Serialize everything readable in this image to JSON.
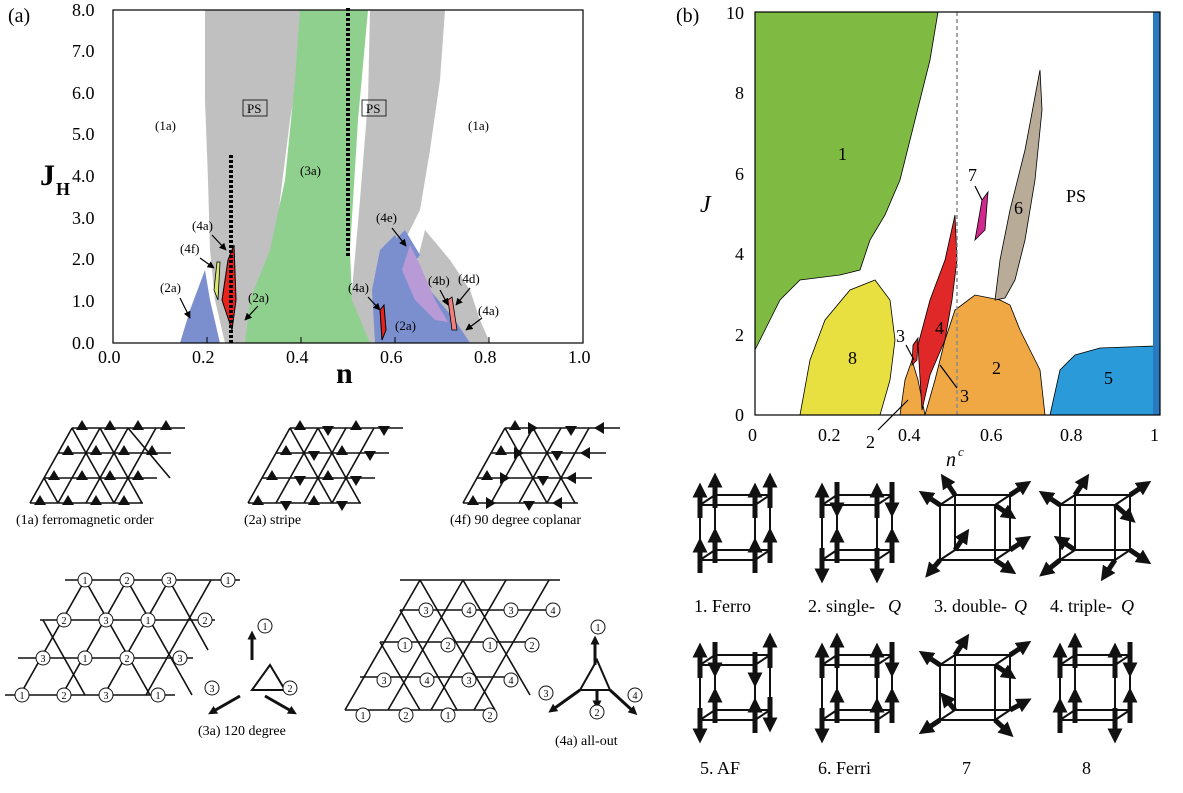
{
  "panel_a": {
    "tag": "(a)",
    "ylabel": "J",
    "ylabel_sub": "H",
    "xlabel": "n",
    "x_ticks": [
      "0.0",
      "0.2",
      "0.4",
      "0.6",
      "0.8",
      "1.0"
    ],
    "y_ticks": [
      "0.0",
      "1.0",
      "2.0",
      "3.0",
      "4.0",
      "5.0",
      "6.0",
      "7.0",
      "8.0"
    ],
    "region_labels": {
      "l1a_left": "(1a)",
      "l1a_right": "(1a)",
      "ps_left": "PS",
      "ps_right": "PS",
      "l3a": "(3a)",
      "l4a_top": "(4a)",
      "l4f": "(4f)",
      "l2a_left": "(2a)",
      "l2a_mid": "(2a)",
      "l4e": "(4e)",
      "l4a_mid": "(4a)",
      "l2a_right": "(2a)",
      "l4b": "(4b)",
      "l4d": "(4d)",
      "l4a_right": "(4a)"
    },
    "colors": {
      "ps": "#c0c0c0",
      "green": "#8fd08f",
      "blue": "#7b8fcf",
      "red": "#e8231f",
      "purple": "#b89ad6",
      "yellow": "#d8e870",
      "pink": "#f08080"
    }
  },
  "panel_b": {
    "tag": "(b)",
    "ylabel": "J",
    "xlabel": "n",
    "xlabel_sup": "c",
    "x_ticks": [
      "0",
      "0.2",
      "0.4",
      "0.6",
      "0.8",
      "1"
    ],
    "y_ticks": [
      "0",
      "2",
      "4",
      "6",
      "8",
      "10"
    ],
    "region_labels": {
      "r1": "1",
      "r2": "2",
      "r2b": "2",
      "r3": "3",
      "r3b": "3",
      "r4": "4",
      "r5": "5",
      "r6": "6",
      "r7": "7",
      "r8": "8",
      "ps": "PS"
    },
    "colors": {
      "green": "#7fba42",
      "yellow": "#e8e040",
      "orange": "#f0a844",
      "red": "#e02828",
      "blue": "#2a9ad8",
      "brown": "#b8ab98",
      "magenta": "#d0288c"
    }
  },
  "lattices": {
    "fm": "(1a) ferromagnetic order",
    "stripe": "(2a) stripe",
    "coplanar": "(4f) 90 degree coplanar",
    "deg120": "(3a) 120 degree",
    "allout": "(4a) all-out",
    "sub3_rows": [
      [
        "1",
        "2",
        "3",
        "1"
      ],
      [
        "2",
        "3",
        "1",
        "2"
      ],
      [
        "3",
        "1",
        "2",
        "3"
      ],
      [
        "1",
        "2",
        "3",
        "1"
      ]
    ],
    "sub4_rows": [
      [
        "3",
        "4",
        "3",
        "4"
      ],
      [
        "1",
        "2",
        "1",
        "2"
      ],
      [
        "3",
        "4",
        "3",
        "4"
      ],
      [
        "1",
        "2",
        "1",
        "2"
      ]
    ],
    "tri_labels": [
      "1",
      "2",
      "3"
    ],
    "tet_labels": [
      "1",
      "2",
      "3",
      "4"
    ]
  },
  "cubes": {
    "row1": [
      "1. Ferro",
      "2. single-",
      "3. double-",
      "4. triple-"
    ],
    "q": "Q",
    "row2": [
      "5. AF",
      "6. Ferri",
      "7",
      "8"
    ]
  }
}
